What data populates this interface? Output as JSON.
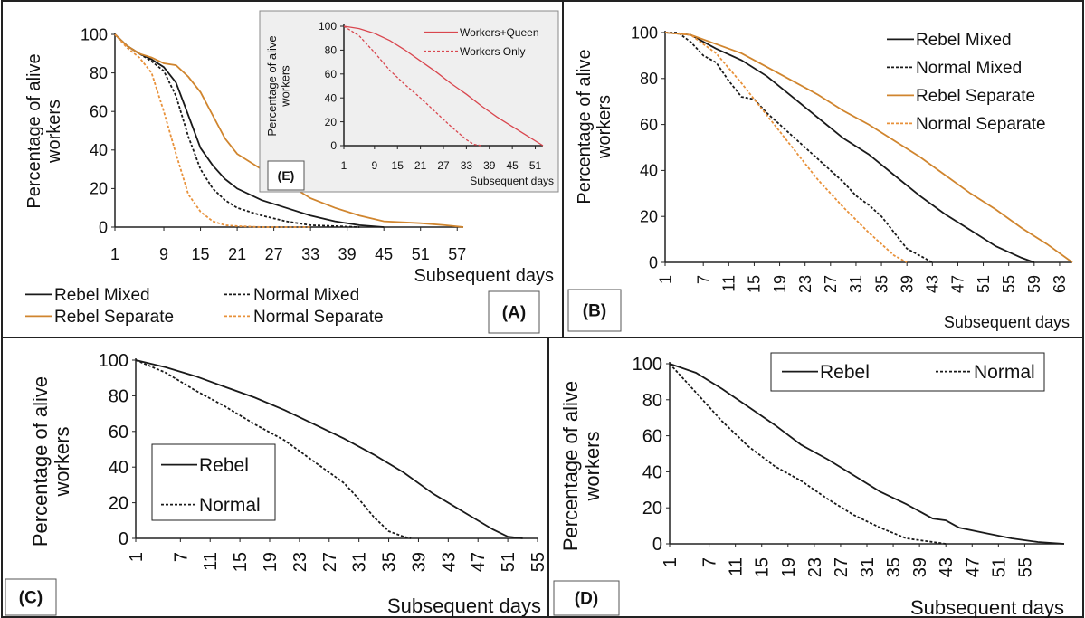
{
  "colors": {
    "rebel": "#1a1a1a",
    "normal": "#1a1a1a",
    "rebel_separate": "#d0852e",
    "normal_separate": "#e8913a",
    "workers_queen": "#d9464e",
    "workers_only": "#d9464e",
    "inset_bg": "#efefef"
  },
  "chart_data": [
    {
      "id": "A",
      "panel_label": "(A)",
      "type": "line",
      "ylabel": "Percentage of alive workers",
      "xlabel": "Subsequent days",
      "xticks": [
        1,
        9,
        15,
        21,
        27,
        33,
        39,
        45,
        51,
        57
      ],
      "yticks": [
        0,
        20,
        40,
        60,
        80,
        100
      ],
      "xlim": [
        1,
        58
      ],
      "ylim": [
        0,
        100
      ],
      "legend": "bottom",
      "series": [
        {
          "name": "Rebel Mixed",
          "style": "solid",
          "color": "#1a1a1a",
          "x": [
            1,
            3,
            5,
            7,
            9,
            11,
            13,
            15,
            17,
            19,
            21,
            25,
            29,
            33,
            37,
            41,
            45
          ],
          "y": [
            100,
            94,
            90,
            87,
            83,
            75,
            58,
            41,
            32,
            25,
            20,
            14,
            10,
            6,
            3,
            1,
            0
          ]
        },
        {
          "name": "Normal Mixed",
          "style": "dashed",
          "color": "#1a1a1a",
          "x": [
            1,
            3,
            5,
            7,
            9,
            11,
            13,
            15,
            17,
            19,
            21,
            25,
            29,
            33,
            37,
            41
          ],
          "y": [
            100,
            94,
            90,
            86,
            81,
            68,
            47,
            30,
            20,
            14,
            10,
            6,
            3,
            1,
            0.5,
            0
          ]
        },
        {
          "name": "Rebel Separate",
          "style": "solid",
          "color": "#d0852e",
          "x": [
            1,
            3,
            5,
            7,
            9,
            11,
            13,
            15,
            17,
            19,
            21,
            25,
            29,
            33,
            37,
            41,
            45,
            51,
            55,
            58
          ],
          "y": [
            100,
            94,
            90,
            88,
            85,
            84,
            78,
            70,
            58,
            46,
            38,
            30,
            23,
            15,
            10,
            6,
            3,
            2,
            1,
            0
          ]
        },
        {
          "name": "Normal Separate",
          "style": "dashed",
          "color": "#e8913a",
          "x": [
            1,
            3,
            5,
            7,
            9,
            11,
            13,
            15,
            17,
            19,
            21,
            25,
            29,
            33
          ],
          "y": [
            100,
            93,
            88,
            80,
            60,
            38,
            17,
            8,
            3,
            1,
            0.5,
            0,
            0,
            0
          ]
        }
      ]
    },
    {
      "id": "E",
      "panel_label": "(E)",
      "type": "line",
      "ylabel": "Percentage of alive workers",
      "xlabel": "Subsequent days",
      "xticks": [
        1,
        9,
        15,
        21,
        27,
        33,
        39,
        45,
        51
      ],
      "yticks": [
        0,
        20,
        40,
        60,
        80,
        100
      ],
      "xlim": [
        1,
        53
      ],
      "ylim": [
        0,
        100
      ],
      "legend": "top-right",
      "series": [
        {
          "name": "Workers+Queen",
          "style": "solid",
          "color": "#d9464e",
          "x": [
            1,
            5,
            9,
            13,
            17,
            21,
            25,
            29,
            33,
            37,
            41,
            45,
            49,
            53
          ],
          "y": [
            100,
            98,
            94,
            88,
            80,
            71,
            62,
            52,
            43,
            33,
            24,
            16,
            8,
            0
          ]
        },
        {
          "name": "Workers Only",
          "style": "dashed",
          "color": "#d9464e",
          "x": [
            1,
            5,
            9,
            13,
            17,
            21,
            25,
            29,
            33,
            35,
            37
          ],
          "y": [
            100,
            92,
            78,
            63,
            51,
            40,
            28,
            16,
            5,
            1,
            0
          ]
        }
      ]
    },
    {
      "id": "B",
      "panel_label": "(B)",
      "type": "line",
      "ylabel": "Percentage of alive workers",
      "xlabel": "Subsequent days",
      "xticks": [
        1,
        7,
        11,
        15,
        19,
        23,
        27,
        31,
        35,
        39,
        43,
        47,
        51,
        55,
        59,
        63
      ],
      "yticks": [
        0,
        20,
        40,
        60,
        80,
        100
      ],
      "xlim": [
        1,
        65
      ],
      "ylim": [
        0,
        100
      ],
      "legend": "top-right",
      "series": [
        {
          "name": "Rebel Mixed",
          "style": "solid",
          "color": "#1a1a1a",
          "x": [
            1,
            5,
            9,
            13,
            17,
            21,
            25,
            29,
            33,
            37,
            41,
            45,
            49,
            53,
            57,
            59
          ],
          "y": [
            100,
            99,
            93,
            88,
            81,
            72,
            63,
            54,
            47,
            38,
            29,
            21,
            14,
            7,
            2,
            0
          ]
        },
        {
          "name": "Normal Mixed",
          "style": "dashed",
          "color": "#1a1a1a",
          "x": [
            1,
            3,
            5,
            7,
            9,
            11,
            13,
            15,
            17,
            19,
            21,
            23,
            25,
            27,
            29,
            31,
            33,
            35,
            37,
            39,
            41,
            43
          ],
          "y": [
            100,
            100,
            96,
            90,
            87,
            79,
            72,
            71,
            65,
            60,
            55,
            50,
            45,
            40,
            35,
            29,
            25,
            20,
            13,
            6,
            3,
            0
          ]
        },
        {
          "name": "Rebel Separate",
          "style": "solid",
          "color": "#d0852e",
          "x": [
            1,
            5,
            9,
            13,
            17,
            21,
            25,
            29,
            33,
            37,
            41,
            45,
            49,
            53,
            57,
            61,
            65
          ],
          "y": [
            100,
            99,
            95,
            91,
            85,
            79,
            73,
            66,
            60,
            53,
            46,
            38,
            30,
            23,
            15,
            8,
            0
          ]
        },
        {
          "name": "Normal Separate",
          "style": "dashed",
          "color": "#e8913a",
          "x": [
            1,
            5,
            9,
            13,
            15,
            17,
            21,
            25,
            29,
            33,
            37,
            39
          ],
          "y": [
            100,
            99,
            91,
            78,
            71,
            64,
            50,
            36,
            24,
            13,
            3,
            0
          ]
        }
      ]
    },
    {
      "id": "C",
      "panel_label": "(C)",
      "type": "line",
      "ylabel": "Percentage of alive workers",
      "xlabel": "Subsequent days",
      "xticks": [
        1,
        7,
        11,
        15,
        19,
        23,
        27,
        31,
        35,
        39,
        43,
        47,
        51,
        55
      ],
      "yticks": [
        0,
        20,
        40,
        60,
        80,
        100
      ],
      "xlim": [
        1,
        55
      ],
      "ylim": [
        0,
        100
      ],
      "legend": "center-left",
      "series": [
        {
          "name": "Rebel",
          "style": "solid",
          "color": "#1a1a1a",
          "x": [
            1,
            5,
            9,
            13,
            17,
            21,
            25,
            29,
            33,
            37,
            41,
            45,
            49,
            51,
            53
          ],
          "y": [
            100,
            96,
            91,
            85,
            79,
            72,
            64,
            56,
            47,
            37,
            25,
            15,
            5,
            1,
            0
          ]
        },
        {
          "name": "Normal",
          "style": "dashed",
          "color": "#1a1a1a",
          "x": [
            1,
            5,
            9,
            13,
            17,
            21,
            25,
            29,
            31,
            33,
            35,
            37,
            38
          ],
          "y": [
            100,
            93,
            83,
            74,
            64,
            55,
            43,
            31,
            22,
            12,
            4,
            1,
            0
          ]
        }
      ]
    },
    {
      "id": "D",
      "panel_label": "(D)",
      "type": "line",
      "ylabel": "Percentage of alive workers",
      "xlabel": "Subsequent days",
      "xticks": [
        1,
        7,
        11,
        15,
        19,
        23,
        27,
        31,
        35,
        39,
        43,
        47,
        51,
        55
      ],
      "yticks": [
        0,
        20,
        40,
        60,
        80,
        100
      ],
      "xlim": [
        1,
        61
      ],
      "ylim": [
        0,
        100
      ],
      "legend": "top-right",
      "series": [
        {
          "name": "Rebel",
          "style": "solid",
          "color": "#1a1a1a",
          "x": [
            1,
            5,
            9,
            13,
            17,
            21,
            25,
            29,
            33,
            37,
            41,
            43,
            45,
            49,
            53,
            57,
            61
          ],
          "y": [
            100,
            95,
            86,
            76,
            66,
            55,
            47,
            38,
            29,
            22,
            14,
            13,
            9,
            6,
            3,
            1,
            0
          ]
        },
        {
          "name": "Normal",
          "style": "dashed",
          "color": "#1a1a1a",
          "x": [
            1,
            5,
            9,
            13,
            17,
            21,
            25,
            29,
            33,
            37,
            41,
            43
          ],
          "y": [
            100,
            84,
            68,
            54,
            43,
            35,
            25,
            16,
            9,
            3,
            1,
            0
          ]
        }
      ]
    }
  ]
}
